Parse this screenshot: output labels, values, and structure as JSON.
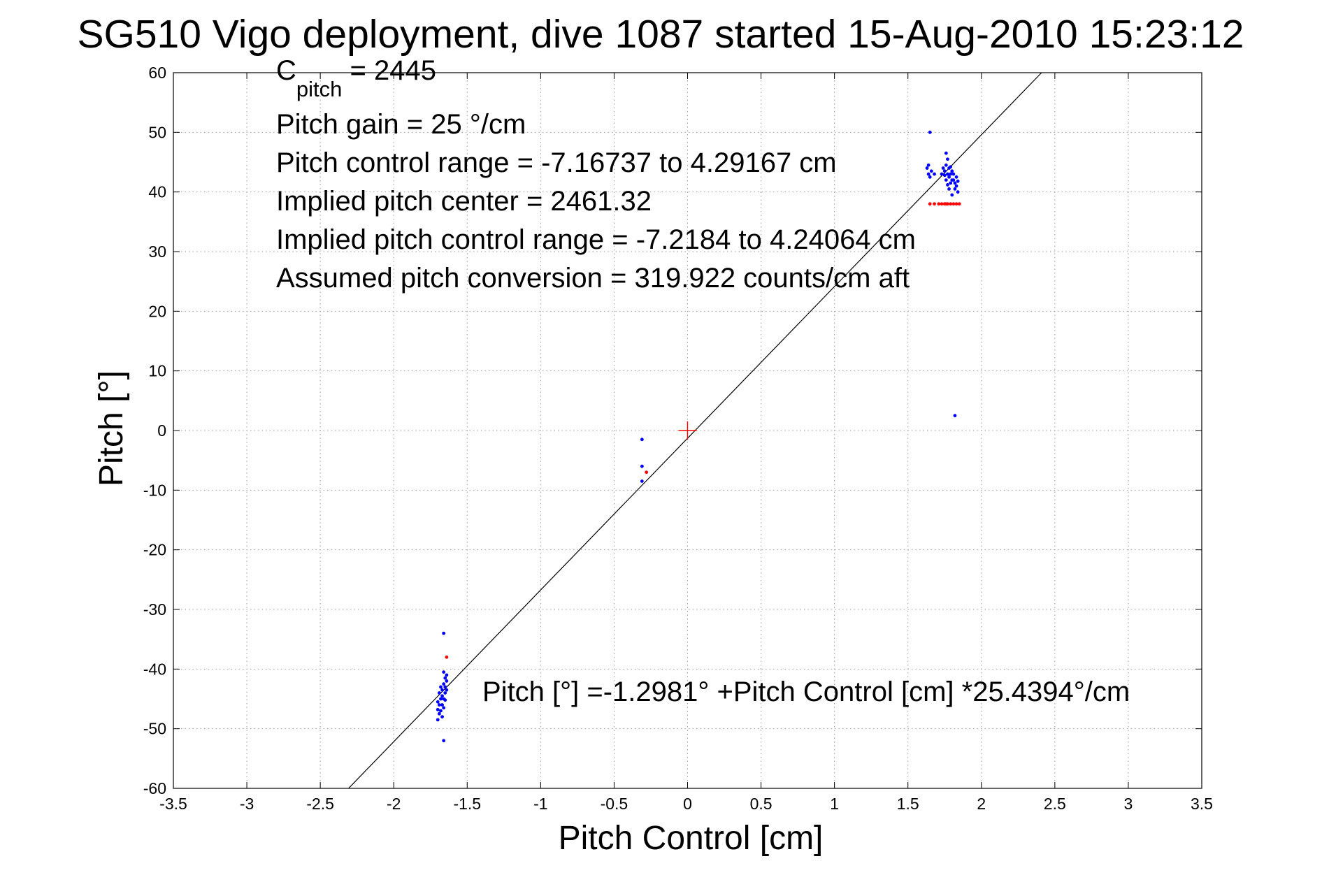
{
  "chart_data": {
    "type": "scatter",
    "title": "SG510 Vigo deployment, dive 1087 started 15-Aug-2010 15:23:12",
    "xlabel": "Pitch Control [cm]",
    "ylabel": "Pitch [°]",
    "xlim": [
      -3.5,
      3.5
    ],
    "ylim": [
      -60,
      60
    ],
    "xticks": [
      -3.5,
      -3,
      -2.5,
      -2,
      -1.5,
      -1,
      -0.5,
      0,
      0.5,
      1,
      1.5,
      2,
      2.5,
      3,
      3.5
    ],
    "xtick_labels": [
      "-3.5",
      "-3",
      "-2.5",
      "-2",
      "-1.5",
      "-1",
      "-0.5",
      "0",
      "0.5",
      "1",
      "1.5",
      "2",
      "2.5",
      "3",
      "3.5"
    ],
    "yticks": [
      -60,
      -50,
      -40,
      -30,
      -20,
      -10,
      0,
      10,
      20,
      30,
      40,
      50,
      60
    ],
    "ytick_labels": [
      "-60",
      "-50",
      "-40",
      "-30",
      "-20",
      "-10",
      "0",
      "10",
      "20",
      "30",
      "40",
      "50",
      "60"
    ],
    "grid": true,
    "annotations": {
      "c_pitch_base": "C",
      "c_pitch_sub": "pitch",
      "c_pitch_value": " = 2445",
      "pitch_gain": "Pitch gain = 25 °/cm",
      "control_range": "Pitch control range = -7.16737 to 4.29167 cm",
      "implied_center": "Implied pitch center = 2461.32",
      "implied_range": "Implied pitch control range = -7.2184 to 4.24064 cm",
      "assumed_conversion": "Assumed pitch conversion = 319.922 counts/cm aft",
      "fit_equation": "Pitch [°] =-1.2981° +Pitch Control [cm] *25.4394°/cm"
    },
    "fit_line": {
      "intercept": -1.2981,
      "slope": 25.4394,
      "color": "#000000"
    },
    "center_marker": {
      "x": 0,
      "y": 0,
      "color": "#ff0000"
    },
    "series": [
      {
        "color": "#0000ff",
        "points": [
          [
            1.65,
            50
          ],
          [
            1.63,
            44
          ],
          [
            1.64,
            43
          ],
          [
            1.65,
            42.5
          ],
          [
            1.66,
            43.5
          ],
          [
            1.68,
            43
          ],
          [
            1.64,
            44.5
          ],
          [
            1.73,
            43
          ],
          [
            1.74,
            44
          ],
          [
            1.75,
            43.5
          ],
          [
            1.76,
            44.5
          ],
          [
            1.76,
            46.5
          ],
          [
            1.77,
            45.5
          ],
          [
            1.77,
            43
          ],
          [
            1.78,
            44
          ],
          [
            1.78,
            42.5
          ],
          [
            1.79,
            43
          ],
          [
            1.79,
            41.5
          ],
          [
            1.8,
            42
          ],
          [
            1.8,
            43.5
          ],
          [
            1.81,
            42
          ],
          [
            1.81,
            43
          ],
          [
            1.82,
            41.5
          ],
          [
            1.83,
            41
          ],
          [
            1.83,
            42.5
          ],
          [
            1.84,
            40
          ],
          [
            1.84,
            41.8
          ],
          [
            1.78,
            40.5
          ],
          [
            1.76,
            42
          ],
          [
            1.8,
            39.5
          ],
          [
            1.82,
            40.5
          ],
          [
            1.75,
            42.8
          ],
          [
            1.79,
            44.2
          ],
          [
            1.77,
            41.2
          ],
          [
            1.82,
            2.5
          ],
          [
            -0.31,
            -1.5
          ],
          [
            -0.31,
            -6
          ],
          [
            -0.31,
            -8.5
          ],
          [
            -1.66,
            -34
          ],
          [
            -1.66,
            -52
          ],
          [
            -1.64,
            -41
          ],
          [
            -1.64,
            -42
          ],
          [
            -1.65,
            -41.5
          ],
          [
            -1.65,
            -43
          ],
          [
            -1.65,
            -44
          ],
          [
            -1.66,
            -42.5
          ],
          [
            -1.66,
            -45
          ],
          [
            -1.67,
            -43.5
          ],
          [
            -1.67,
            -46
          ],
          [
            -1.67,
            -44.5
          ],
          [
            -1.68,
            -45
          ],
          [
            -1.68,
            -47
          ],
          [
            -1.69,
            -46
          ],
          [
            -1.69,
            -47.5
          ],
          [
            -1.7,
            -45.5
          ],
          [
            -1.7,
            -48.5
          ],
          [
            -1.69,
            -44
          ],
          [
            -1.66,
            -46.5
          ],
          [
            -1.67,
            -48
          ],
          [
            -1.68,
            -43
          ],
          [
            -1.64,
            -43.5
          ],
          [
            -1.66,
            -40.5
          ],
          [
            -1.7,
            -46.8
          ],
          [
            -1.65,
            -45.2
          ]
        ]
      },
      {
        "color": "#ff0000",
        "points": [
          [
            1.65,
            38
          ],
          [
            1.68,
            38
          ],
          [
            1.71,
            38
          ],
          [
            1.73,
            38
          ],
          [
            1.75,
            38
          ],
          [
            1.76,
            38
          ],
          [
            1.77,
            38
          ],
          [
            1.79,
            38
          ],
          [
            1.81,
            38
          ],
          [
            1.83,
            38
          ],
          [
            1.85,
            38
          ],
          [
            -0.28,
            -7
          ],
          [
            -1.64,
            -38
          ]
        ]
      }
    ]
  }
}
